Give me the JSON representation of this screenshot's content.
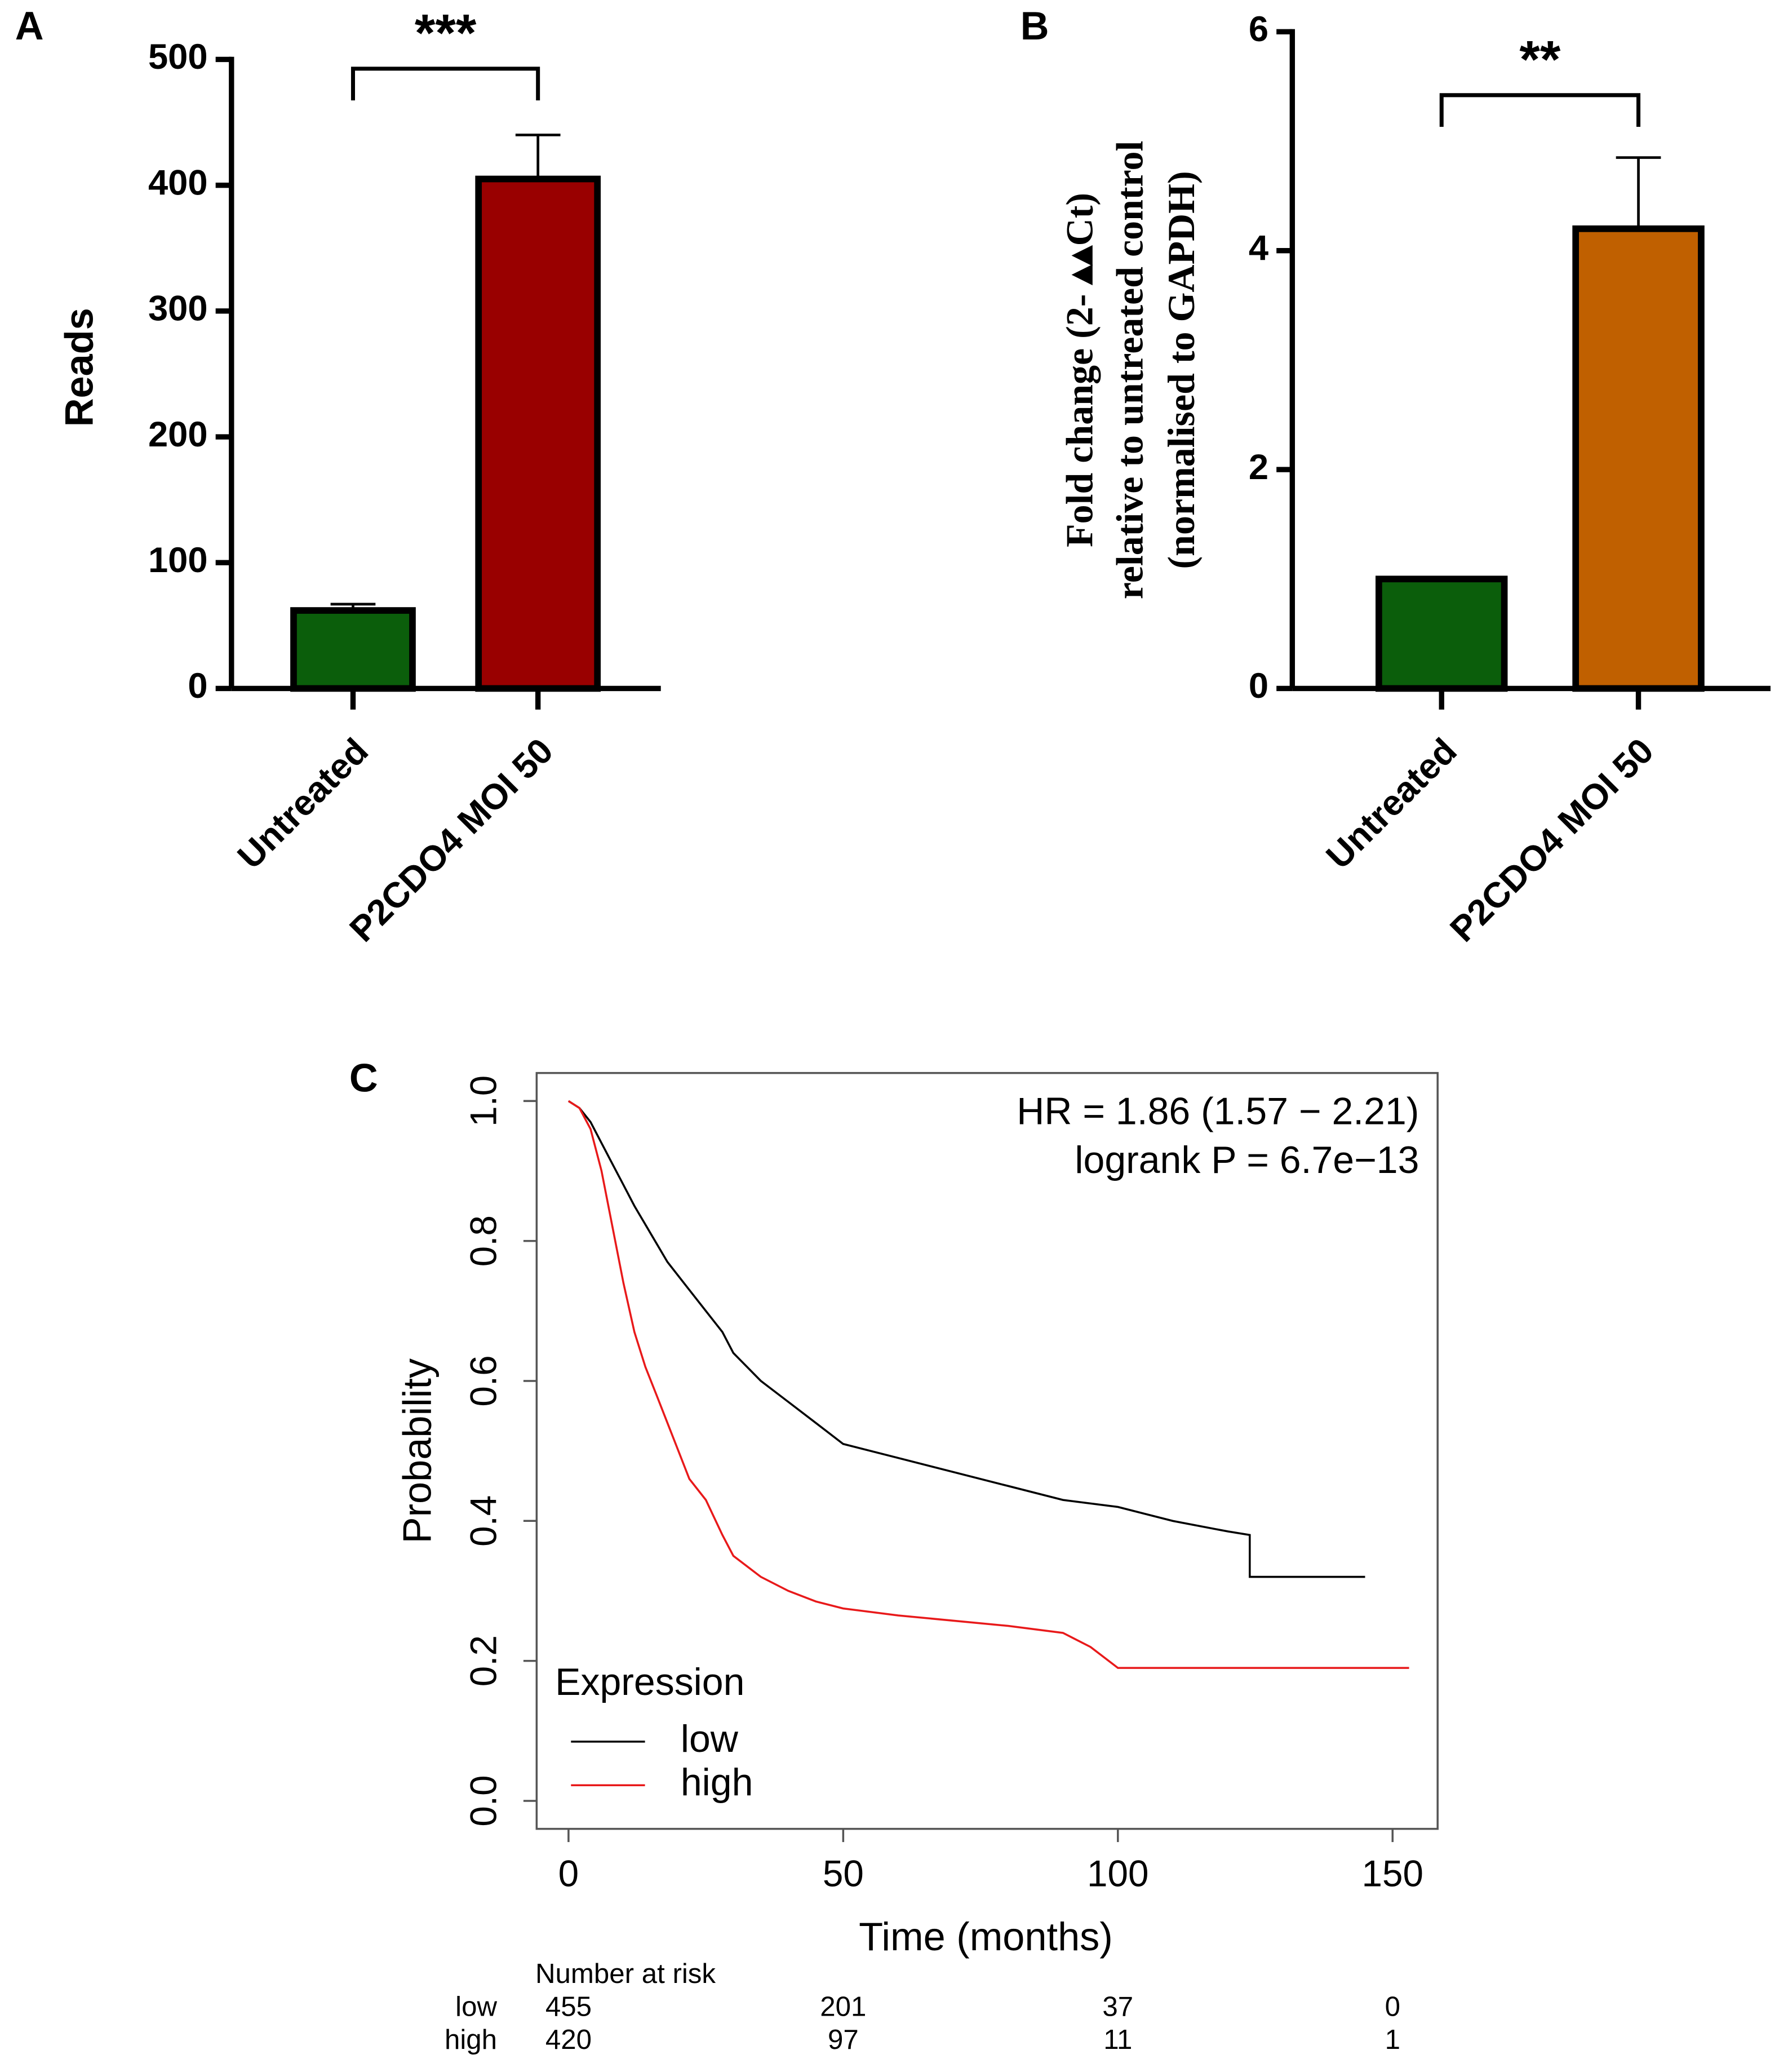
{
  "chart_data": [
    {
      "type": "bar",
      "panel_label": "A",
      "ylabel": "Reads",
      "categories": [
        "Untreated",
        "P2CDO4 MOI 50"
      ],
      "values": [
        62,
        405
      ],
      "errors": [
        5,
        35
      ],
      "colors": [
        "#0b5e0b",
        "#990000"
      ],
      "significance": "***",
      "ylim": [
        0,
        500
      ],
      "yticks": [
        0,
        100,
        200,
        300,
        400,
        500
      ]
    },
    {
      "type": "bar",
      "panel_label": "B",
      "ylabel_lines": [
        "Fold change (2- ▴▴Ct)",
        "relative to untreated control",
        "(normalised to GAPDH)"
      ],
      "categories": [
        "Untreated",
        "P2CDO4 MOI 50"
      ],
      "values": [
        1,
        4.2
      ],
      "errors": [
        0,
        0.65
      ],
      "colors": [
        "#0b5e0b",
        "#c06000"
      ],
      "significance": "**",
      "ylim": [
        0,
        6
      ],
      "yticks": [
        0,
        2,
        4,
        6
      ]
    },
    {
      "type": "line",
      "panel_label": "C",
      "xlabel": "Time (months)",
      "ylabel": "Probability",
      "annotations": [
        "HR = 1.86 (1.57 − 2.21)",
        "logrank P = 6.7e−13"
      ],
      "legend_title": "Expression",
      "series": [
        {
          "name": "low",
          "color": "#000000",
          "x": [
            0,
            2,
            4,
            6,
            8,
            10,
            12,
            15,
            18,
            22,
            25,
            28,
            30,
            35,
            40,
            45,
            50,
            60,
            70,
            80,
            90,
            100,
            110,
            120,
            124,
            124,
            145
          ],
          "values": [
            1,
            0.99,
            0.97,
            0.94,
            0.91,
            0.88,
            0.85,
            0.81,
            0.77,
            0.73,
            0.7,
            0.67,
            0.64,
            0.6,
            0.57,
            0.54,
            0.51,
            0.49,
            0.47,
            0.45,
            0.43,
            0.42,
            0.4,
            0.385,
            0.38,
            0.32,
            0.32
          ]
        },
        {
          "name": "high",
          "color": "#e8191a",
          "x": [
            0,
            2,
            4,
            6,
            8,
            10,
            12,
            14,
            16,
            18,
            20,
            22,
            25,
            28,
            30,
            35,
            40,
            45,
            50,
            60,
            80,
            90,
            95,
            100,
            153
          ],
          "values": [
            1,
            0.99,
            0.96,
            0.9,
            0.82,
            0.74,
            0.67,
            0.62,
            0.58,
            0.54,
            0.5,
            0.46,
            0.43,
            0.38,
            0.35,
            0.32,
            0.3,
            0.285,
            0.275,
            0.265,
            0.25,
            0.24,
            0.22,
            0.19,
            0.19
          ]
        }
      ],
      "xlim": [
        -5.8,
        158.2
      ],
      "xticks": [
        0,
        50,
        100,
        150
      ],
      "ylim": [
        -0.04,
        1.04
      ],
      "yticks": [
        {
          "value": 0,
          "label": "0.0"
        },
        0.2,
        0.4,
        0.6,
        0.8,
        {
          "value": 1,
          "label": "1.0"
        }
      ],
      "risk_table": {
        "title": "Number at risk",
        "rows": [
          {
            "name": "low",
            "values": [
              455,
              201,
              37,
              0
            ]
          },
          {
            "name": "high",
            "values": [
              420,
              97,
              11,
              1
            ]
          }
        ]
      }
    }
  ]
}
